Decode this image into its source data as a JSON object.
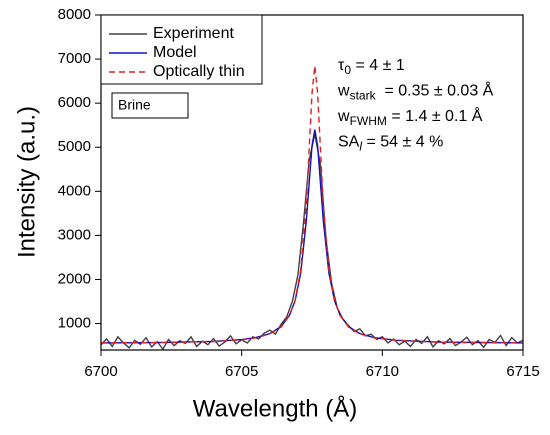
{
  "chart_data": {
    "type": "line",
    "xlabel": "Wavelength (Å)",
    "ylabel": "Intensity (a.u.)",
    "xlim": [
      6700,
      6715
    ],
    "xticks": [
      6700,
      6705,
      6710,
      6715
    ],
    "ylim": [
      400,
      8000
    ],
    "yticks": [
      1000,
      2000,
      3000,
      4000,
      5000,
      6000,
      7000,
      8000
    ],
    "legend": "top-left",
    "tag": "Brine",
    "annotations": [
      {
        "main": "τ",
        "sub": "0",
        "rest": " = 4 ± 1"
      },
      {
        "main": "w",
        "sub": "stark",
        "rest": "  = 0.35 ± 0.03 Å"
      },
      {
        "main": "w",
        "sub": "FWHM",
        "rest": " = 1.4 ± 0.1 Å"
      },
      {
        "main": "SA",
        "sub": "l",
        "rest": " = 54 ± 4 %"
      }
    ],
    "series": [
      {
        "name": "Experiment",
        "color": "#404040",
        "dash": "none",
        "x": [
          6700.0,
          6700.2,
          6700.4,
          6700.6,
          6700.8,
          6701.0,
          6701.2,
          6701.4,
          6701.6,
          6701.8,
          6702.0,
          6702.2,
          6702.4,
          6702.6,
          6702.8,
          6703.0,
          6703.2,
          6703.4,
          6703.6,
          6703.8,
          6704.0,
          6704.2,
          6704.4,
          6704.6,
          6704.8,
          6705.0,
          6705.2,
          6705.4,
          6705.6,
          6705.8,
          6706.0,
          6706.2,
          6706.4,
          6706.6,
          6706.8,
          6707.0,
          6707.2,
          6707.4,
          6707.6,
          6707.8,
          6708.0,
          6708.2,
          6708.4,
          6708.6,
          6708.8,
          6709.0,
          6709.2,
          6709.4,
          6709.6,
          6709.8,
          6710.0,
          6710.2,
          6710.4,
          6710.6,
          6710.8,
          6711.0,
          6711.2,
          6711.4,
          6711.6,
          6711.8,
          6712.0,
          6712.2,
          6712.4,
          6712.6,
          6712.8,
          6713.0,
          6713.2,
          6713.4,
          6713.6,
          6713.8,
          6714.0,
          6714.2,
          6714.4,
          6714.6,
          6714.8,
          6715.0
        ],
        "values": [
          520,
          650,
          480,
          700,
          560,
          450,
          620,
          530,
          680,
          470,
          590,
          420,
          640,
          500,
          610,
          550,
          700,
          480,
          600,
          520,
          660,
          490,
          580,
          720,
          540,
          630,
          560,
          700,
          650,
          780,
          850,
          760,
          980,
          1150,
          1500,
          2100,
          3300,
          4700,
          5300,
          4600,
          2900,
          1900,
          1350,
          1100,
          950,
          820,
          880,
          720,
          760,
          640,
          700,
          560,
          650,
          520,
          600,
          480,
          640,
          550,
          700,
          470,
          610,
          540,
          660,
          500,
          580,
          690,
          520,
          610,
          460,
          640,
          570,
          730,
          500,
          680,
          560,
          620
        ]
      },
      {
        "name": "Model",
        "color": "#1010c0",
        "dash": "none",
        "x": [
          6700,
          6702,
          6704,
          6705,
          6705.5,
          6706,
          6706.4,
          6706.7,
          6706.9,
          6707.1,
          6707.3,
          6707.5,
          6707.6,
          6707.7,
          6707.9,
          6708.1,
          6708.3,
          6708.5,
          6708.8,
          6709.2,
          6709.7,
          6710.5,
          6712,
          6715
        ],
        "values": [
          560,
          569,
          595,
          636,
          681,
          771,
          930,
          1187,
          1520,
          2145,
          3345,
          5033,
          5400,
          5033,
          3345,
          2145,
          1520,
          1187,
          930,
          771,
          681,
          620,
          580,
          561
        ]
      },
      {
        "name": "Optically thin",
        "color": "#e02020",
        "dash": "6,4",
        "x": [
          6700,
          6702,
          6704,
          6705,
          6705.5,
          6706,
          6706.4,
          6706.7,
          6706.9,
          6707.1,
          6707.3,
          6707.5,
          6707.6,
          6707.7,
          6707.9,
          6708.1,
          6708.3,
          6708.5,
          6708.8,
          6709.2,
          6709.7,
          6710.5,
          6712,
          6715
        ],
        "values": [
          560,
          568,
          593,
          632,
          676,
          764,
          920,
          1180,
          1528,
          2217,
          3700,
          6220,
          6850,
          6220,
          3700,
          2217,
          1528,
          1180,
          920,
          764,
          676,
          620,
          575,
          560
        ]
      }
    ]
  }
}
